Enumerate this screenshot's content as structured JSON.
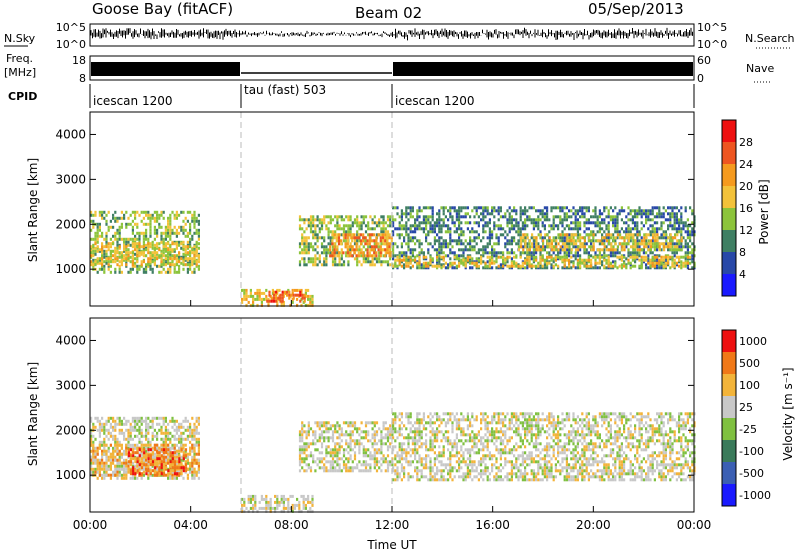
{
  "header": {
    "station": "Goose Bay (fitACF)",
    "beam": "Beam 02",
    "date": "05/Sep/2013"
  },
  "noise_panel": {
    "left_label": "N.Sky",
    "left_ticks": [
      "10^5",
      "10^0"
    ],
    "right_label": "N.Search",
    "right_ticks": [
      "10^5",
      "10^0"
    ]
  },
  "freq_panel": {
    "left_label_1": "Freq.",
    "left_label_2": "[MHz]",
    "left_ticks": [
      "18",
      "8"
    ],
    "right_label": "Nave",
    "right_ticks": [
      "60",
      "0"
    ]
  },
  "cpid": {
    "label": "CPID",
    "segments": [
      {
        "name": "icescan 1200",
        "start": 0,
        "end": 6
      },
      {
        "name": "tau (fast) 503",
        "start": 6,
        "end": 12
      },
      {
        "name": "icescan 1200",
        "start": 12,
        "end": 24
      }
    ]
  },
  "axes": {
    "xlabel": "Time UT",
    "xticks": [
      "00:00",
      "04:00",
      "08:00",
      "12:00",
      "16:00",
      "20:00",
      "00:00"
    ],
    "ylabel": "Slant Range [km]",
    "yticks": [
      "1000",
      "2000",
      "3000",
      "4000"
    ]
  },
  "colorbars": {
    "power": {
      "label": "Power [dB]",
      "ticks": [
        "4",
        "8",
        "12",
        "16",
        "20",
        "24",
        "28"
      ],
      "colors": [
        "#1a1aff",
        "#2848a8",
        "#3f7f63",
        "#8cc43b",
        "#f3c23a",
        "#f59a1e",
        "#ee5520",
        "#ee1010"
      ]
    },
    "velocity": {
      "label": "Velocity [m s⁻¹]",
      "ticks": [
        "1000",
        "500",
        "100",
        "25",
        "-25",
        "-100",
        "-500",
        "-1000"
      ],
      "colors": [
        "#1a1aff",
        "#3b5fb3",
        "#3a7a5a",
        "#7fc040",
        "#c8c8c8",
        "#f3b43a",
        "#f07818",
        "#ee1010"
      ]
    }
  },
  "chart_data": [
    {
      "type": "heatmap",
      "title": "Power",
      "xlabel": "Time UT",
      "ylabel": "Slant Range [km]",
      "xlim": [
        0,
        24
      ],
      "ylim": [
        180,
        4500
      ],
      "value_label": "Power [dB]",
      "bands": [
        {
          "t0": 0.0,
          "t1": 4.3,
          "r0": 900,
          "r1": 2300,
          "level": 3
        },
        {
          "t0": 0.0,
          "t1": 4.3,
          "r0": 1100,
          "r1": 1600,
          "level": 4
        },
        {
          "t0": 6.0,
          "t1": 8.8,
          "r0": 220,
          "r1": 560,
          "level": 4
        },
        {
          "t0": 7.0,
          "t1": 8.5,
          "r0": 300,
          "r1": 520,
          "level": 6
        },
        {
          "t0": 8.3,
          "t1": 12.0,
          "r0": 1100,
          "r1": 2200,
          "level": 3
        },
        {
          "t0": 9.5,
          "t1": 12.0,
          "r0": 1300,
          "r1": 1800,
          "level": 5
        },
        {
          "t0": 12.0,
          "t1": 24.0,
          "r0": 1000,
          "r1": 2400,
          "level": 2
        },
        {
          "t0": 12.0,
          "t1": 24.0,
          "r0": 1050,
          "r1": 1300,
          "level": 4
        },
        {
          "t0": 17.0,
          "t1": 23.5,
          "r0": 1400,
          "r1": 1800,
          "level": 4
        }
      ]
    },
    {
      "type": "heatmap",
      "title": "Velocity",
      "xlabel": "Time UT",
      "ylabel": "Slant Range [km]",
      "xlim": [
        0,
        24
      ],
      "ylim": [
        180,
        4500
      ],
      "value_label": "Velocity [m s⁻¹]",
      "bands": [
        {
          "t0": 0.0,
          "t1": 4.3,
          "r0": 900,
          "r1": 2300,
          "level": 4
        },
        {
          "t0": 0.0,
          "t1": 4.3,
          "r0": 1000,
          "r1": 1700,
          "level": 5
        },
        {
          "t0": 1.5,
          "t1": 3.8,
          "r0": 1000,
          "r1": 1600,
          "level": 6
        },
        {
          "t0": 6.0,
          "t1": 8.8,
          "r0": 220,
          "r1": 560,
          "level": 4
        },
        {
          "t0": 8.3,
          "t1": 12.0,
          "r0": 1100,
          "r1": 2200,
          "level": 4
        },
        {
          "t0": 12.0,
          "t1": 24.0,
          "r0": 900,
          "r1": 2400,
          "level": 4
        }
      ]
    }
  ]
}
